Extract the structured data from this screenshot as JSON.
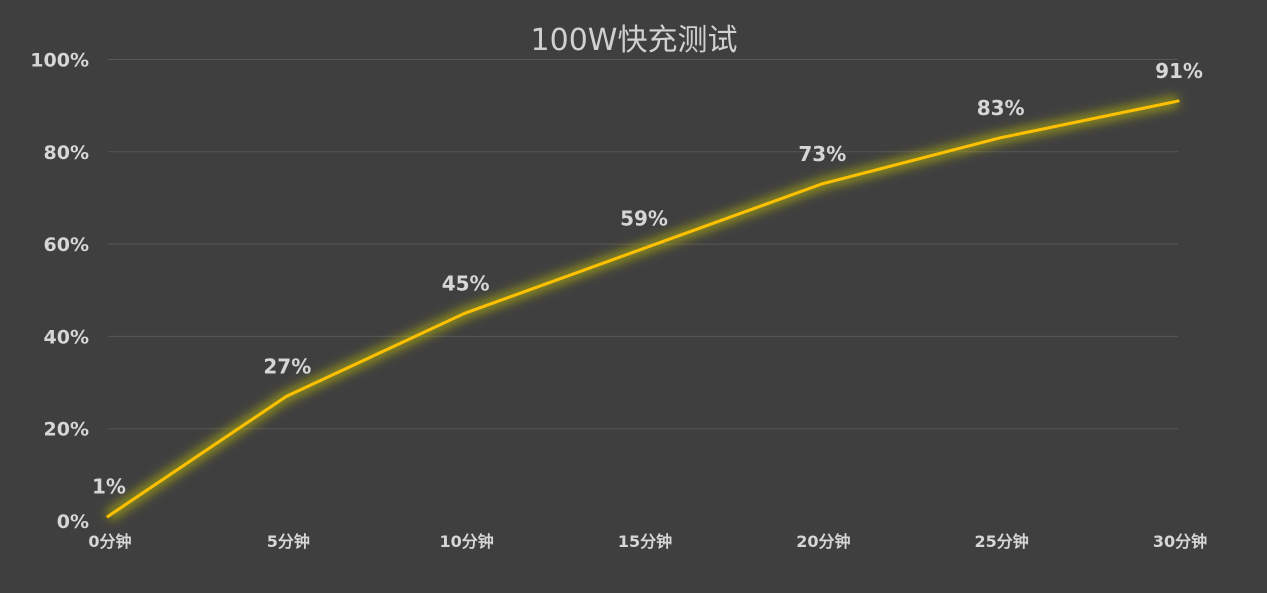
{
  "colors": {
    "background": "#3f3f3f",
    "line": "#ffc000",
    "glow": "#c8c800",
    "text": "#d6d6d6",
    "grid": "#575757"
  },
  "chart_data": {
    "type": "line",
    "title": "100W快充测试",
    "xlabel": "",
    "ylabel": "",
    "categories": [
      "0分钟",
      "5分钟",
      "10分钟",
      "15分钟",
      "20分钟",
      "25分钟",
      "30分钟"
    ],
    "x": [
      0,
      5,
      10,
      15,
      20,
      25,
      30
    ],
    "series": [
      {
        "values": [
          1,
          27,
          45,
          59,
          73,
          83,
          91
        ],
        "data_labels": [
          "1%",
          "27%",
          "45%",
          "59%",
          "73%",
          "83%",
          "91%"
        ]
      }
    ],
    "ylim": [
      0,
      100
    ],
    "xlim": [
      0,
      30
    ],
    "yticks": [
      0,
      20,
      40,
      60,
      80,
      100
    ],
    "ytick_labels": [
      "0%",
      "20%",
      "40%",
      "60%",
      "80%",
      "100%"
    ],
    "grid": true,
    "legend": "none"
  }
}
